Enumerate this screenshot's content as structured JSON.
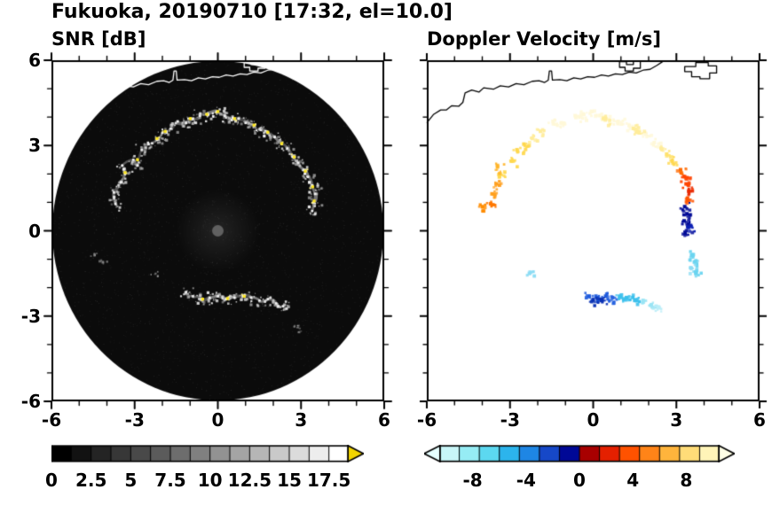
{
  "header": {
    "title": "Fukuoka, 20190710 [17:32, el=10.0]"
  },
  "panels": {
    "snr": {
      "title": "SNR [dB]",
      "xtick_labels": [
        "-6",
        "-3",
        "0",
        "3",
        "6"
      ],
      "ytick_labels": [
        "6",
        "3",
        "0",
        "-3",
        "-6"
      ],
      "colorbar": {
        "labels": [
          "0",
          "2.5",
          "5",
          "7.5",
          "10",
          "12.5",
          "15",
          "17.5"
        ],
        "values": [
          0,
          2.5,
          5,
          7.5,
          10,
          12.5,
          15,
          17.5
        ],
        "range": [
          0,
          18.75
        ],
        "segments": [
          "#000000",
          "#121212",
          "#242424",
          "#373737",
          "#494949",
          "#5b5b5b",
          "#6d6d6d",
          "#808080",
          "#929292",
          "#a4a4a4",
          "#b6b6b6",
          "#c9c9c9",
          "#dbdbdb",
          "#ededed",
          "#ffffff"
        ],
        "arrow_right": "#f2d500"
      }
    },
    "doppler": {
      "title": "Doppler Velocity [m/s]",
      "xtick_labels": [
        "-6",
        "-3",
        "0",
        "3",
        "6"
      ],
      "colorbar": {
        "labels": [
          "-8",
          "-4",
          "0",
          "4",
          "8"
        ],
        "values": [
          -8,
          -4,
          0,
          4,
          8
        ],
        "range": [
          -10.5,
          10.5
        ],
        "segments": [
          "#c8f6f8",
          "#96ecf4",
          "#5cd8f0",
          "#2cb4ec",
          "#1e86e4",
          "#1648c8",
          "#000896",
          "#a80000",
          "#e42000",
          "#ff5200",
          "#ff8418",
          "#ffb43c",
          "#ffdc78",
          "#fff4b8"
        ],
        "arrow_left": "#e6ffff",
        "arrow_right": "#ffffe6"
      }
    }
  },
  "chart_data": {
    "type": "heatmap",
    "description": "Dual-panel Doppler radar PPI scan: left = SNR [dB] on black scan disk, right = Doppler velocity [m/s] echoes over coastline map",
    "site": "Fukuoka",
    "date": "20190710",
    "time": "17:32",
    "elevation_deg": 10.0,
    "axis_range_km": [
      -6,
      6
    ],
    "axis_major_ticks": [
      -6,
      -3,
      0,
      3,
      6
    ],
    "axis_minor_tick_step": 1,
    "scan_disk_radius_km": 6,
    "snr": {
      "background": "#0b0b0b",
      "speckle_palette": [
        "#ffffff",
        "#e8e8e8",
        "#c4c4c4",
        "#989898"
      ],
      "yellow": "#ffe81e",
      "center_dot_color": "#606060",
      "ring_arc": [
        [
          -3.7,
          0.95
        ],
        [
          -3.75,
          1.35
        ],
        [
          -3.5,
          1.7
        ],
        [
          -3.35,
          2.0
        ],
        [
          -3.45,
          2.3
        ],
        [
          -3.05,
          2.5
        ],
        [
          -2.9,
          2.3
        ],
        [
          -2.75,
          2.85
        ],
        [
          -2.5,
          3.05
        ],
        [
          -2.2,
          3.2
        ],
        [
          -2.0,
          3.45
        ],
        [
          -1.7,
          3.6
        ],
        [
          -1.45,
          3.85
        ],
        [
          -1.15,
          3.8
        ],
        [
          -0.9,
          3.95
        ],
        [
          -0.65,
          4.05
        ],
        [
          -0.35,
          4.1
        ],
        [
          -0.05,
          4.2
        ],
        [
          0.25,
          4.05
        ],
        [
          0.5,
          3.9
        ],
        [
          0.75,
          3.95
        ],
        [
          1.0,
          3.8
        ],
        [
          1.3,
          3.7
        ],
        [
          1.55,
          3.55
        ],
        [
          1.8,
          3.45
        ],
        [
          2.05,
          3.3
        ],
        [
          2.3,
          3.05
        ],
        [
          2.5,
          2.9
        ],
        [
          2.7,
          2.6
        ],
        [
          2.9,
          2.4
        ],
        [
          3.1,
          2.15
        ],
        [
          3.25,
          1.9
        ],
        [
          3.4,
          1.6
        ],
        [
          3.5,
          1.3
        ],
        [
          3.45,
          1.0
        ],
        [
          3.4,
          0.7
        ]
      ],
      "bottom_arc": [
        [
          -1.15,
          -2.15
        ],
        [
          -0.9,
          -2.3
        ],
        [
          -0.6,
          -2.4
        ],
        [
          -0.3,
          -2.35
        ],
        [
          0.0,
          -2.3
        ],
        [
          0.3,
          -2.4
        ],
        [
          0.6,
          -2.35
        ],
        [
          0.9,
          -2.3
        ],
        [
          1.2,
          -2.35
        ],
        [
          1.5,
          -2.45
        ],
        [
          1.8,
          -2.4
        ],
        [
          2.1,
          -2.55
        ],
        [
          2.35,
          -2.65
        ]
      ],
      "isolated": [
        [
          -4.45,
          -0.85
        ],
        [
          -4.2,
          -1.05
        ],
        [
          -2.3,
          -1.5
        ],
        [
          2.75,
          -3.35
        ],
        [
          2.95,
          -3.5
        ]
      ],
      "yellow_points": [
        [
          -3.35,
          2.05
        ],
        [
          -2.9,
          2.5
        ],
        [
          -2.2,
          3.25
        ],
        [
          -1.9,
          3.5
        ],
        [
          -1.0,
          3.95
        ],
        [
          -0.4,
          4.1
        ],
        [
          0.0,
          4.2
        ],
        [
          0.6,
          3.95
        ],
        [
          1.3,
          3.72
        ],
        [
          1.8,
          3.47
        ],
        [
          2.3,
          3.07
        ],
        [
          2.75,
          2.6
        ],
        [
          3.15,
          2.1
        ],
        [
          3.42,
          1.55
        ],
        [
          3.47,
          1.05
        ],
        [
          0.35,
          -2.38
        ],
        [
          0.95,
          -2.3
        ],
        [
          -0.55,
          -2.4
        ]
      ]
    },
    "doppler": {
      "points": [
        [
          -1.45,
          3.85,
          "#fff8d8"
        ],
        [
          -1.15,
          3.8,
          "#fff8d8"
        ],
        [
          -0.65,
          4.05,
          "#fff8d8"
        ],
        [
          -0.35,
          4.1,
          "#fff8d8"
        ],
        [
          -0.05,
          4.2,
          "#fff8d8"
        ],
        [
          0.25,
          4.05,
          "#fff8d8"
        ],
        [
          0.55,
          3.92,
          "#fff8d8"
        ],
        [
          0.9,
          3.85,
          "#fff8d8"
        ],
        [
          1.3,
          3.7,
          "#fff8d8"
        ],
        [
          1.9,
          3.4,
          "#fff8d8"
        ],
        [
          2.2,
          3.1,
          "#fff8d8"
        ],
        [
          -1.9,
          3.5,
          "#ffec9a"
        ],
        [
          -2.2,
          3.25,
          "#ffec9a"
        ],
        [
          0.45,
          3.95,
          "#ffec9a"
        ],
        [
          1.45,
          3.6,
          "#ffec9a"
        ],
        [
          1.6,
          3.5,
          "#ffec9a"
        ],
        [
          2.45,
          2.9,
          "#ffec9a"
        ],
        [
          2.65,
          2.7,
          "#ffe26e"
        ],
        [
          -2.5,
          3.05,
          "#ffd84e"
        ],
        [
          -2.75,
          2.85,
          "#ffd84e"
        ],
        [
          -2.95,
          2.45,
          "#ffd84e"
        ],
        [
          -3.35,
          2.0,
          "#ffd84e"
        ],
        [
          2.85,
          2.45,
          "#ffd84e"
        ],
        [
          -3.45,
          2.25,
          "#ffb428"
        ],
        [
          -3.5,
          1.65,
          "#ffa01e"
        ],
        [
          -3.65,
          1.3,
          "#ffa01e"
        ],
        [
          -3.7,
          0.95,
          "#ff7800"
        ],
        [
          -4.0,
          0.85,
          "#ff8c00"
        ],
        [
          3.15,
          2.15,
          "#ff6a00"
        ],
        [
          3.3,
          1.9,
          "#ff4400"
        ],
        [
          3.35,
          1.65,
          "#ff4400"
        ],
        [
          3.45,
          1.4,
          "#e82800"
        ],
        [
          3.4,
          1.15,
          "#ff5500"
        ],
        [
          3.3,
          0.85,
          "#000a96"
        ],
        [
          3.38,
          0.6,
          "#000a96"
        ],
        [
          3.28,
          0.35,
          "#000a96"
        ],
        [
          3.42,
          0.12,
          "#0a1eb4"
        ],
        [
          3.32,
          -0.08,
          "#000a96"
        ],
        [
          3.55,
          -0.85,
          "#6ad4f0"
        ],
        [
          3.65,
          -1.1,
          "#6ad4f0"
        ],
        [
          3.52,
          -1.3,
          "#8cdcf4"
        ],
        [
          3.7,
          -1.5,
          "#6ad4f0"
        ],
        [
          -0.15,
          -2.3,
          "#1e5adc"
        ],
        [
          0.15,
          -2.35,
          "#1e5adc"
        ],
        [
          0.45,
          -2.3,
          "#1e5adc"
        ],
        [
          0.7,
          -2.35,
          "#2864e0"
        ],
        [
          0.3,
          -2.45,
          "#0a32b4"
        ],
        [
          0.0,
          -2.42,
          "#0a32b4"
        ],
        [
          0.95,
          -2.3,
          "#3cc0ec"
        ],
        [
          1.2,
          -2.35,
          "#3cc0ec"
        ],
        [
          1.5,
          -2.45,
          "#3cc0ec"
        ],
        [
          1.8,
          -2.45,
          "#9ae4f4"
        ],
        [
          2.1,
          -2.6,
          "#9ae4f4"
        ],
        [
          2.35,
          -2.7,
          "#bceef8"
        ],
        [
          -2.3,
          -1.5,
          "#8cdcf4"
        ]
      ]
    },
    "coastline": {
      "main": [
        [
          -6.0,
          3.8
        ],
        [
          -5.75,
          4.1
        ],
        [
          -5.5,
          4.25
        ],
        [
          -5.3,
          4.25
        ],
        [
          -5.1,
          4.4
        ],
        [
          -4.85,
          4.38
        ],
        [
          -4.7,
          4.52
        ],
        [
          -4.62,
          4.85
        ],
        [
          -4.38,
          4.95
        ],
        [
          -4.12,
          4.88
        ],
        [
          -3.95,
          5.03
        ],
        [
          -3.6,
          4.98
        ],
        [
          -3.35,
          5.1
        ],
        [
          -3.05,
          5.06
        ],
        [
          -2.78,
          5.18
        ],
        [
          -2.5,
          5.14
        ],
        [
          -2.2,
          5.26
        ],
        [
          -1.95,
          5.28
        ],
        [
          -1.75,
          5.22
        ],
        [
          -1.62,
          5.3
        ],
        [
          -1.58,
          5.62
        ],
        [
          -1.5,
          5.62
        ],
        [
          -1.47,
          5.3
        ],
        [
          -1.2,
          5.32
        ],
        [
          -0.95,
          5.28
        ],
        [
          -0.7,
          5.38
        ],
        [
          -0.45,
          5.34
        ],
        [
          -0.2,
          5.42
        ],
        [
          0.05,
          5.4
        ],
        [
          0.3,
          5.48
        ],
        [
          0.55,
          5.44
        ],
        [
          0.8,
          5.52
        ],
        [
          1.05,
          5.5
        ],
        [
          1.3,
          5.58
        ],
        [
          1.55,
          5.55
        ],
        [
          1.8,
          5.65
        ],
        [
          2.05,
          5.68
        ],
        [
          2.3,
          5.82
        ],
        [
          2.5,
          5.95
        ]
      ],
      "islands": [
        [
          [
            0.95,
            5.75
          ],
          [
            0.95,
            5.95
          ],
          [
            1.2,
            5.95
          ],
          [
            1.2,
            5.85
          ],
          [
            1.45,
            5.85
          ],
          [
            1.45,
            5.98
          ],
          [
            1.7,
            5.98
          ],
          [
            1.7,
            5.72
          ],
          [
            1.45,
            5.72
          ],
          [
            1.45,
            5.62
          ],
          [
            1.15,
            5.62
          ],
          [
            1.15,
            5.75
          ]
        ],
        [
          [
            3.3,
            5.6
          ],
          [
            3.55,
            5.6
          ],
          [
            3.55,
            5.42
          ],
          [
            3.85,
            5.42
          ],
          [
            3.85,
            5.35
          ],
          [
            4.2,
            5.35
          ],
          [
            4.2,
            5.55
          ],
          [
            4.45,
            5.55
          ],
          [
            4.45,
            5.8
          ],
          [
            4.15,
            5.8
          ],
          [
            4.15,
            5.92
          ],
          [
            3.7,
            5.92
          ],
          [
            3.7,
            5.78
          ],
          [
            3.3,
            5.78
          ]
        ]
      ]
    }
  }
}
